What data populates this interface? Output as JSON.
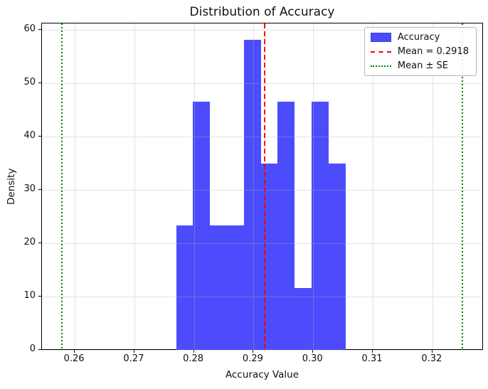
{
  "chart_data": {
    "type": "bar",
    "subtype": "histogram",
    "title": "Distribution of Accuracy",
    "xlabel": "Accuracy Value",
    "ylabel": "Density",
    "bin_edges": [
      0.277,
      0.2798,
      0.2827,
      0.2855,
      0.2884,
      0.2912,
      0.294,
      0.2969,
      0.2997,
      0.3026,
      0.3054
    ],
    "densities": [
      23.3,
      46.5,
      23.3,
      23.3,
      58.1,
      34.9,
      46.5,
      11.6,
      46.5,
      34.9
    ],
    "mean": 0.2918,
    "se_lines": [
      0.2578,
      0.325
    ],
    "xlim": [
      0.2545,
      0.3285
    ],
    "ylim": [
      0,
      61.2
    ],
    "xticks": {
      "values": [
        0.26,
        0.27,
        0.28,
        0.29,
        0.3,
        0.31,
        0.32
      ],
      "labels": [
        "0.26",
        "0.27",
        "0.28",
        "0.29",
        "0.30",
        "0.31",
        "0.32"
      ]
    },
    "yticks": {
      "values": [
        0,
        10,
        20,
        30,
        40,
        50,
        60
      ],
      "labels": [
        "0",
        "10",
        "20",
        "30",
        "40",
        "50",
        "60"
      ]
    },
    "grid": true,
    "legend": {
      "position": "upper right",
      "items": [
        {
          "label": "Accuracy",
          "marker": "patch",
          "color": "#4c4cfc"
        },
        {
          "label": "Mean = 0.2918",
          "marker": "dashed-line",
          "color": "#ff0000"
        },
        {
          "label": "Mean ± SE",
          "marker": "dotted-line",
          "color": "#008000"
        }
      ]
    },
    "colors": {
      "bar": "#4c4cfc",
      "mean_line": "#ff0000",
      "se_line": "#008000",
      "grid": "rgba(176,176,176,0.35)",
      "spine": "#000000",
      "background": "#ffffff"
    }
  }
}
